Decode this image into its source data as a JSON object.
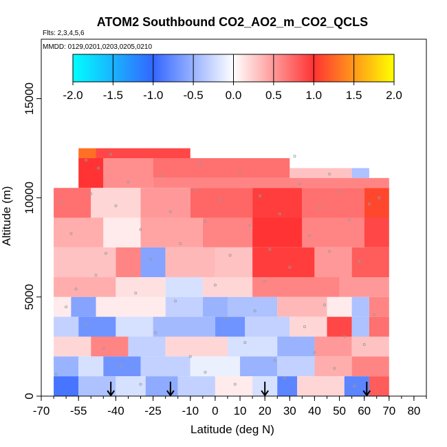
{
  "chart_data": {
    "type": "heatmap",
    "title": "ATOM2 Southbound CO2_AO2_m_CO2_QCLS",
    "flights_label": "Flts: 2,3,4,5,6",
    "dates_label": "MMDD: 0129,0201,0203,0205,0210",
    "xlabel": "Latitude (deg N)",
    "ylabel": "Altitude (m)",
    "xlim": [
      -70,
      85
    ],
    "ylim": [
      0,
      18000
    ],
    "x_ticks": [
      -70,
      -55,
      -40,
      -25,
      -10,
      0,
      10,
      20,
      30,
      40,
      50,
      60,
      70,
      80
    ],
    "y_ticks": [
      0,
      5000,
      10000,
      15000
    ],
    "colorbar": {
      "min": -2.0,
      "max": 2.0,
      "ticks": [
        "-2.0",
        "-1.5",
        "-1.0",
        "-0.5",
        "0.0",
        "0.5",
        "1.0",
        "1.5",
        "2.0"
      ],
      "colors": [
        "#00ffff",
        "#3366ff",
        "#ffffff",
        "#ff3333",
        "#ffff00"
      ]
    },
    "arrow_latitudes": [
      -42,
      -18,
      20,
      61
    ],
    "cells": [
      {
        "x": [
          -55,
          -48
        ],
        "y": [
          12000,
          12500
        ],
        "v": 1.3
      },
      {
        "x": [
          -48,
          -10
        ],
        "y": [
          12000,
          12500
        ],
        "v": 0.9
      },
      {
        "x": [
          -55,
          -45
        ],
        "y": [
          10500,
          12000
        ],
        "v": 1.0
      },
      {
        "x": [
          -45,
          -25
        ],
        "y": [
          10500,
          12000
        ],
        "v": 0.55
      },
      {
        "x": [
          -25,
          30
        ],
        "y": [
          11000,
          12000
        ],
        "v": 0.7
      },
      {
        "x": [
          30,
          55
        ],
        "y": [
          11000,
          11500
        ],
        "v": 0.3
      },
      {
        "x": [
          55,
          62
        ],
        "y": [
          11000,
          11500
        ],
        "v": -0.4
      },
      {
        "x": [
          -25,
          70
        ],
        "y": [
          10500,
          11000
        ],
        "v": 0.6
      },
      {
        "x": [
          -65,
          -50
        ],
        "y": [
          9000,
          10500
        ],
        "v": 0.7
      },
      {
        "x": [
          -50,
          -30
        ],
        "y": [
          9000,
          10500
        ],
        "v": 0.2
      },
      {
        "x": [
          -30,
          -10
        ],
        "y": [
          9000,
          10500
        ],
        "v": 0.5
      },
      {
        "x": [
          -10,
          15
        ],
        "y": [
          9000,
          10500
        ],
        "v": 0.75
      },
      {
        "x": [
          15,
          35
        ],
        "y": [
          9000,
          10500
        ],
        "v": 0.95
      },
      {
        "x": [
          35,
          60
        ],
        "y": [
          9000,
          10500
        ],
        "v": 0.7
      },
      {
        "x": [
          60,
          70
        ],
        "y": [
          9000,
          10500
        ],
        "v": 1.1
      },
      {
        "x": [
          -65,
          -45
        ],
        "y": [
          7500,
          9000
        ],
        "v": 0.4
      },
      {
        "x": [
          -45,
          -30
        ],
        "y": [
          7500,
          9000
        ],
        "v": 0.1
      },
      {
        "x": [
          -30,
          -5
        ],
        "y": [
          7500,
          9000
        ],
        "v": 0.45
      },
      {
        "x": [
          -5,
          15
        ],
        "y": [
          7500,
          9000
        ],
        "v": 0.6
      },
      {
        "x": [
          15,
          35
        ],
        "y": [
          7500,
          9000
        ],
        "v": 1.0
      },
      {
        "x": [
          35,
          60
        ],
        "y": [
          7500,
          9000
        ],
        "v": 0.6
      },
      {
        "x": [
          60,
          70
        ],
        "y": [
          7500,
          9000
        ],
        "v": 0.9
      },
      {
        "x": [
          -65,
          -40
        ],
        "y": [
          6000,
          7500
        ],
        "v": 0.3
      },
      {
        "x": [
          -40,
          -30
        ],
        "y": [
          6000,
          7500
        ],
        "v": 0.6
      },
      {
        "x": [
          -30,
          -20
        ],
        "y": [
          6000,
          7500
        ],
        "v": -0.6
      },
      {
        "x": [
          -20,
          0
        ],
        "y": [
          6000,
          7500
        ],
        "v": 0.35
      },
      {
        "x": [
          0,
          15
        ],
        "y": [
          6000,
          7500
        ],
        "v": 0.3
      },
      {
        "x": [
          15,
          40
        ],
        "y": [
          6000,
          7500
        ],
        "v": 0.95
      },
      {
        "x": [
          40,
          55
        ],
        "y": [
          6000,
          7500
        ],
        "v": 0.5
      },
      {
        "x": [
          55,
          70
        ],
        "y": [
          6000,
          7500
        ],
        "v": 0.8
      },
      {
        "x": [
          -65,
          -40
        ],
        "y": [
          5000,
          6000
        ],
        "v": 0.4
      },
      {
        "x": [
          -40,
          -20
        ],
        "y": [
          5000,
          6000
        ],
        "v": 0.15
      },
      {
        "x": [
          -20,
          -5
        ],
        "y": [
          5000,
          6000
        ],
        "v": -0.2
      },
      {
        "x": [
          -5,
          15
        ],
        "y": [
          5000,
          6000
        ],
        "v": 0.2
      },
      {
        "x": [
          15,
          50
        ],
        "y": [
          5000,
          6000
        ],
        "v": 0.6
      },
      {
        "x": [
          50,
          70
        ],
        "y": [
          5000,
          6000
        ],
        "v": 0.5
      },
      {
        "x": [
          -65,
          -58
        ],
        "y": [
          4000,
          5000
        ],
        "v": 0.1
      },
      {
        "x": [
          -58,
          -48
        ],
        "y": [
          4000,
          5000
        ],
        "v": -0.6
      },
      {
        "x": [
          -48,
          -20
        ],
        "y": [
          4000,
          5000
        ],
        "v": 0.1
      },
      {
        "x": [
          -20,
          -5
        ],
        "y": [
          4000,
          5000
        ],
        "v": -0.3
      },
      {
        "x": [
          -5,
          5
        ],
        "y": [
          4000,
          5000
        ],
        "v": -0.5
      },
      {
        "x": [
          5,
          25
        ],
        "y": [
          4000,
          5000
        ],
        "v": -0.4
      },
      {
        "x": [
          25,
          45
        ],
        "y": [
          4000,
          5000
        ],
        "v": 0.35
      },
      {
        "x": [
          45,
          55
        ],
        "y": [
          4000,
          5000
        ],
        "v": 0.1
      },
      {
        "x": [
          55,
          62
        ],
        "y": [
          4000,
          5000
        ],
        "v": -0.4
      },
      {
        "x": [
          62,
          70
        ],
        "y": [
          4000,
          5000
        ],
        "v": 0.6
      },
      {
        "x": [
          -65,
          -55
        ],
        "y": [
          3000,
          4000
        ],
        "v": -0.3
      },
      {
        "x": [
          -55,
          -40
        ],
        "y": [
          3000,
          4000
        ],
        "v": -0.7
      },
      {
        "x": [
          -40,
          -25
        ],
        "y": [
          3000,
          4000
        ],
        "v": -0.2
      },
      {
        "x": [
          -25,
          0
        ],
        "y": [
          3000,
          4000
        ],
        "v": -0.45
      },
      {
        "x": [
          0,
          12
        ],
        "y": [
          3000,
          4000
        ],
        "v": -0.7
      },
      {
        "x": [
          12,
          30
        ],
        "y": [
          3000,
          4000
        ],
        "v": -0.3
      },
      {
        "x": [
          30,
          45
        ],
        "y": [
          3000,
          4000
        ],
        "v": 0.2
      },
      {
        "x": [
          45,
          55
        ],
        "y": [
          3000,
          4000
        ],
        "v": 0.9
      },
      {
        "x": [
          55,
          62
        ],
        "y": [
          3000,
          4000
        ],
        "v": -0.4
      },
      {
        "x": [
          62,
          70
        ],
        "y": [
          3000,
          4000
        ],
        "v": 0.7
      },
      {
        "x": [
          -65,
          -50
        ],
        "y": [
          2000,
          3000
        ],
        "v": 0.2
      },
      {
        "x": [
          -50,
          -35
        ],
        "y": [
          2000,
          3000
        ],
        "v": 0.6
      },
      {
        "x": [
          -35,
          -20
        ],
        "y": [
          2000,
          3000
        ],
        "v": -0.3
      },
      {
        "x": [
          -20,
          5
        ],
        "y": [
          2000,
          3000
        ],
        "v": 0.2
      },
      {
        "x": [
          5,
          25
        ],
        "y": [
          2000,
          3000
        ],
        "v": -0.2
      },
      {
        "x": [
          25,
          40
        ],
        "y": [
          2000,
          3000
        ],
        "v": -0.5
      },
      {
        "x": [
          40,
          55
        ],
        "y": [
          2000,
          3000
        ],
        "v": 0.5
      },
      {
        "x": [
          55,
          70
        ],
        "y": [
          2000,
          3000
        ],
        "v": 0.3
      },
      {
        "x": [
          -65,
          -55
        ],
        "y": [
          1000,
          2000
        ],
        "v": -0.5
      },
      {
        "x": [
          -55,
          -45
        ],
        "y": [
          1000,
          2000
        ],
        "v": -0.2
      },
      {
        "x": [
          -45,
          -30
        ],
        "y": [
          1000,
          2000
        ],
        "v": -0.7
      },
      {
        "x": [
          -30,
          -10
        ],
        "y": [
          1000,
          2000
        ],
        "v": -0.3
      },
      {
        "x": [
          -10,
          10
        ],
        "y": [
          1000,
          2000
        ],
        "v": -0.1
      },
      {
        "x": [
          10,
          25
        ],
        "y": [
          1000,
          2000
        ],
        "v": -0.5
      },
      {
        "x": [
          25,
          40
        ],
        "y": [
          1000,
          2000
        ],
        "v": -0.3
      },
      {
        "x": [
          40,
          55
        ],
        "y": [
          1000,
          2000
        ],
        "v": 0.4
      },
      {
        "x": [
          55,
          70
        ],
        "y": [
          1000,
          2000
        ],
        "v": 0.6
      },
      {
        "x": [
          -65,
          -55
        ],
        "y": [
          0,
          1000
        ],
        "v": -0.9
      },
      {
        "x": [
          -55,
          -40
        ],
        "y": [
          0,
          1000
        ],
        "v": -0.4
      },
      {
        "x": [
          -40,
          -28
        ],
        "y": [
          0,
          1000
        ],
        "v": -0.2
      },
      {
        "x": [
          -28,
          -15
        ],
        "y": [
          0,
          1000
        ],
        "v": -0.55
      },
      {
        "x": [
          -15,
          0
        ],
        "y": [
          0,
          1000
        ],
        "v": -0.3
      },
      {
        "x": [
          0,
          15
        ],
        "y": [
          0,
          1000
        ],
        "v": 0.1
      },
      {
        "x": [
          15,
          25
        ],
        "y": [
          0,
          1000
        ],
        "v": -0.2
      },
      {
        "x": [
          25,
          33
        ],
        "y": [
          0,
          1000
        ],
        "v": -0.8
      },
      {
        "x": [
          33,
          52
        ],
        "y": [
          0,
          1000
        ],
        "v": 0.2
      },
      {
        "x": [
          52,
          62
        ],
        "y": [
          0,
          1000
        ],
        "v": -0.8
      },
      {
        "x": [
          62,
          70
        ],
        "y": [
          0,
          1000
        ],
        "v": 0.8
      }
    ],
    "markers": [
      [
        -62,
        9800
      ],
      [
        -58,
        8200
      ],
      [
        -50,
        10200
      ],
      [
        -47,
        11500
      ],
      [
        -44,
        7200
      ],
      [
        -40,
        9600
      ],
      [
        -35,
        10800
      ],
      [
        -30,
        8400
      ],
      [
        -26,
        6900
      ],
      [
        -22,
        11100
      ],
      [
        -18,
        9300
      ],
      [
        -14,
        7700
      ],
      [
        -8,
        10400
      ],
      [
        -4,
        8800
      ],
      [
        2,
        9900
      ],
      [
        6,
        7100
      ],
      [
        10,
        11300
      ],
      [
        14,
        8600
      ],
      [
        18,
        10100
      ],
      [
        22,
        7400
      ],
      [
        26,
        9200
      ],
      [
        30,
        6500
      ],
      [
        34,
        10700
      ],
      [
        38,
        8100
      ],
      [
        42,
        9500
      ],
      [
        46,
        7300
      ],
      [
        50,
        10300
      ],
      [
        54,
        8900
      ],
      [
        58,
        6800
      ],
      [
        62,
        9700
      ],
      [
        66,
        10000
      ],
      [
        -60,
        4500
      ],
      [
        -52,
        3600
      ],
      [
        -45,
        2400
      ],
      [
        -38,
        1500
      ],
      [
        -30,
        600
      ],
      [
        -24,
        3200
      ],
      [
        -16,
        4800
      ],
      [
        -10,
        2000
      ],
      [
        -4,
        1200
      ],
      [
        4,
        3900
      ],
      [
        8,
        600
      ],
      [
        12,
        2700
      ],
      [
        16,
        4300
      ],
      [
        24,
        1800
      ],
      [
        28,
        900
      ],
      [
        36,
        3500
      ],
      [
        40,
        2200
      ],
      [
        44,
        4600
      ],
      [
        48,
        1400
      ],
      [
        52,
        3000
      ],
      [
        56,
        500
      ],
      [
        60,
        2600
      ],
      [
        64,
        4100
      ],
      [
        -64,
        1100
      ],
      [
        -56,
        5400
      ],
      [
        -48,
        6100
      ],
      [
        -32,
        5200
      ],
      [
        0,
        5600
      ],
      [
        20,
        5800
      ],
      [
        32,
        12100
      ],
      [
        -52,
        11900
      ],
      [
        -42,
        12200
      ],
      [
        -6,
        11700
      ],
      [
        46,
        11200
      ]
    ]
  }
}
